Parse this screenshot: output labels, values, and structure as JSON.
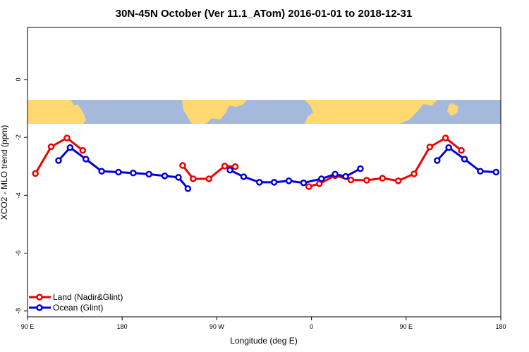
{
  "chart_data": {
    "type": "line",
    "title": "30N-45N October (Ver 11.1_ATom)   2016-01-01 to 2018-12-31",
    "xlabel": "Longitude (deg E)",
    "ylabel": "XCO2 - MLO trend (ppm)",
    "xlim": [
      90,
      540
    ],
    "ylim": [
      -8.2,
      1.8
    ],
    "x_ticks": [
      {
        "value": 90,
        "label": "90 E"
      },
      {
        "value": 180,
        "label": "180"
      },
      {
        "value": 270,
        "label": "90 W"
      },
      {
        "value": 360,
        "label": "0"
      },
      {
        "value": 450,
        "label": "90 E"
      },
      {
        "value": 540,
        "label": "180"
      }
    ],
    "y_ticks": [
      {
        "value": 0,
        "label": "0"
      },
      {
        "value": -2,
        "label": "-2"
      },
      {
        "value": -4,
        "label": "-4"
      },
      {
        "value": -6,
        "label": "-6"
      },
      {
        "value": -8,
        "label": "-8"
      }
    ],
    "map_band": {
      "y_top": -0.75,
      "y_bottom": -1.6,
      "land_color": "#ffd970",
      "ocean_color": "#a5b9dc"
    },
    "legend_position": "bottom-left",
    "series": [
      {
        "name": "Land (Nadir&Glint)",
        "color": "#ee0000",
        "segments": [
          [
            [
              97.5,
              -3.25
            ],
            [
              112.5,
              -2.32
            ],
            [
              127.5,
              -2.02
            ],
            [
              142.5,
              -2.45
            ]
          ],
          [
            [
              237.5,
              -2.97
            ],
            [
              247.5,
              -3.43
            ],
            [
              262.5,
              -3.43
            ],
            [
              277.5,
              -2.99
            ],
            [
              287.5,
              -3.01
            ]
          ],
          [
            [
              357.5,
              -3.7
            ],
            [
              367.5,
              -3.6
            ],
            [
              382.5,
              -3.32
            ],
            [
              397.5,
              -3.47
            ],
            [
              412.5,
              -3.48
            ],
            [
              427.5,
              -3.41
            ],
            [
              442.5,
              -3.5
            ],
            [
              457.5,
              -3.26
            ],
            [
              472.5,
              -2.33
            ],
            [
              487.5,
              -2.02
            ],
            [
              502.5,
              -2.45
            ]
          ]
        ]
      },
      {
        "name": "Ocean (Glint)",
        "color": "#0000dd",
        "segments": [
          [
            [
              119.5,
              -2.8
            ],
            [
              130.5,
              -2.35
            ],
            [
              145.5,
              -2.75
            ],
            [
              160.5,
              -3.17
            ],
            [
              176.5,
              -3.2
            ],
            [
              190.5,
              -3.23
            ],
            [
              205.5,
              -3.27
            ],
            [
              220.5,
              -3.33
            ],
            [
              233.5,
              -3.38
            ],
            [
              242.5,
              -3.77
            ]
          ],
          [
            [
              282.5,
              -3.13
            ],
            [
              295.5,
              -3.36
            ],
            [
              310.5,
              -3.55
            ],
            [
              324.5,
              -3.55
            ],
            [
              338.5,
              -3.5
            ],
            [
              352.5,
              -3.57
            ],
            [
              369.5,
              -3.43
            ],
            [
              382.5,
              -3.27
            ],
            [
              392.5,
              -3.35
            ],
            [
              406.5,
              -3.08
            ]
          ],
          [
            [
              479.5,
              -2.8
            ],
            [
              490.5,
              -2.35
            ],
            [
              505.5,
              -2.75
            ],
            [
              520.5,
              -3.17
            ],
            [
              535.5,
              -3.2
            ]
          ]
        ]
      }
    ]
  }
}
